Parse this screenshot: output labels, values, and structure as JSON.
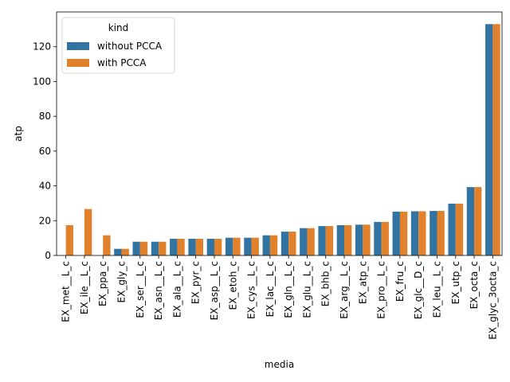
{
  "chart_data": {
    "type": "bar",
    "xlabel": "media",
    "ylabel": "atp",
    "ylim": [
      0,
      140
    ],
    "yticks": [
      0,
      20,
      40,
      60,
      80,
      100,
      120
    ],
    "grid": false,
    "legend": {
      "title": "kind",
      "placement": "top-left"
    },
    "categories": [
      "EX_met__L_c",
      "EX_ile__L_c",
      "EX_ppa_c",
      "EX_gly_c",
      "EX_ser__L_c",
      "EX_asn__L_c",
      "EX_ala__L_c",
      "EX_pyr_c",
      "EX_asp__L_c",
      "EX_etoh_c",
      "EX_cys__L_c",
      "EX_lac__L_c",
      "EX_gln__L_c",
      "EX_glu__L_c",
      "EX_bhb_c",
      "EX_arg__L_c",
      "EX_atp_c",
      "EX_pro__L_c",
      "EX_fru_c",
      "EX_glc__D_c",
      "EX_leu__L_c",
      "EX_utp_c",
      "EX_octa_c",
      "EX_glyc_3octa_c"
    ],
    "series": [
      {
        "name": "without PCCA",
        "color": "#3274a1",
        "values": [
          0,
          0,
          0,
          3.8,
          7.9,
          7.9,
          9.6,
          9.6,
          9.6,
          10.2,
          10.2,
          11.6,
          13.7,
          15.7,
          16.9,
          17.4,
          17.7,
          19.3,
          25.2,
          25.4,
          25.6,
          29.8,
          39.3,
          133
        ]
      },
      {
        "name": "with PCCA",
        "color": "#e1812c",
        "values": [
          17.4,
          26.7,
          11.6,
          3.8,
          7.9,
          7.9,
          9.6,
          9.6,
          9.6,
          10.2,
          10.2,
          11.6,
          13.7,
          15.7,
          16.9,
          17.4,
          17.7,
          19.3,
          25.2,
          25.4,
          25.6,
          29.8,
          39.3,
          133
        ]
      }
    ]
  }
}
